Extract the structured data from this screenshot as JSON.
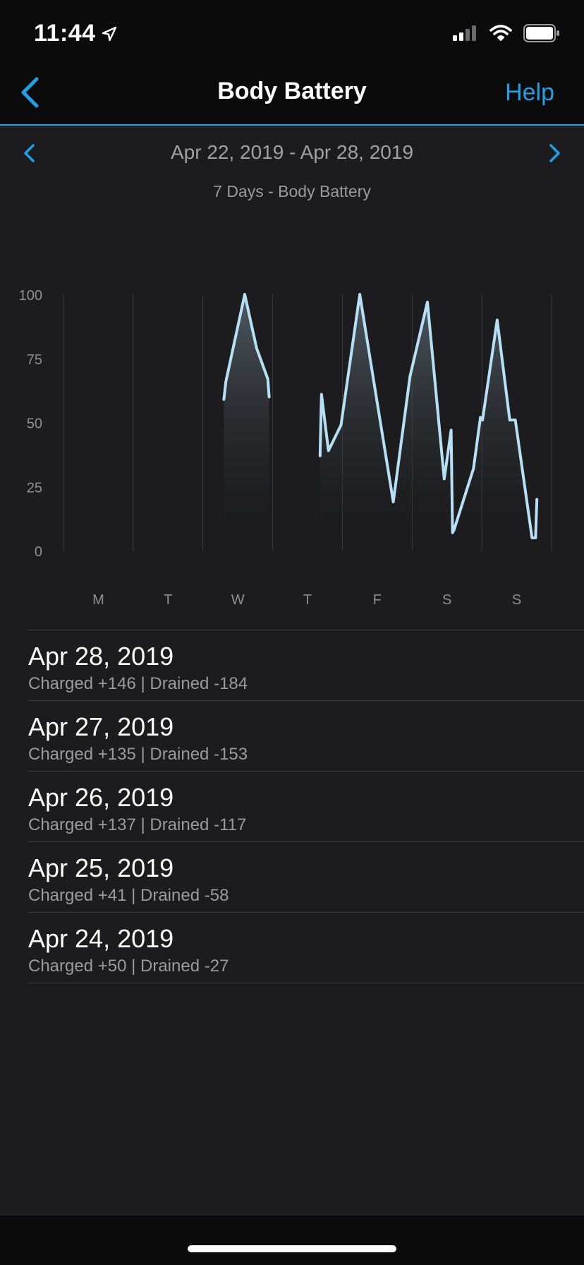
{
  "status_bar": {
    "time": "11:44"
  },
  "nav": {
    "back_icon": "chevron-left-icon",
    "title": "Body Battery",
    "help_label": "Help"
  },
  "range": {
    "label": "Apr 22, 2019 - Apr 28, 2019"
  },
  "chart_title": "7 Days - Body Battery",
  "colors": {
    "accent": "#1ea1e6",
    "line": "#b6e0f5",
    "background": "#1c1c1e"
  },
  "chart_data": {
    "type": "area",
    "title": "7 Days - Body Battery",
    "categories": [
      "M",
      "T",
      "W",
      "T",
      "F",
      "S",
      "S"
    ],
    "yticks": [
      100,
      75,
      50,
      25,
      0
    ],
    "ylim": [
      0,
      100
    ],
    "xlim": [
      0,
      7
    ],
    "grid": true,
    "segments": [
      {
        "x": [
          2.3,
          2.33,
          2.6,
          2.77,
          2.93,
          2.95
        ],
        "y": [
          59,
          66,
          100,
          79,
          67,
          60
        ]
      },
      {
        "x": [
          3.68,
          3.7,
          3.8,
          3.98,
          4.25,
          4.48,
          4.73,
          4.97,
          5.22,
          5.46,
          5.56,
          5.58,
          5.6,
          5.88,
          5.98,
          6.01,
          6.22,
          6.4,
          6.48,
          6.72,
          6.77,
          6.79
        ],
        "y": [
          37,
          61,
          39,
          49,
          100,
          61,
          19,
          68,
          97,
          28,
          47,
          7,
          8,
          32,
          52,
          51,
          90,
          51,
          51,
          5,
          5,
          20
        ]
      }
    ]
  },
  "days": [
    {
      "date": "Apr 28, 2019",
      "detail": "Charged +146 | Drained -184"
    },
    {
      "date": "Apr 27, 2019",
      "detail": "Charged +135 | Drained -153"
    },
    {
      "date": "Apr 26, 2019",
      "detail": "Charged +137 | Drained -117"
    },
    {
      "date": "Apr 25, 2019",
      "detail": "Charged +41 | Drained -58"
    },
    {
      "date": "Apr 24, 2019",
      "detail": "Charged +50 | Drained -27"
    }
  ]
}
